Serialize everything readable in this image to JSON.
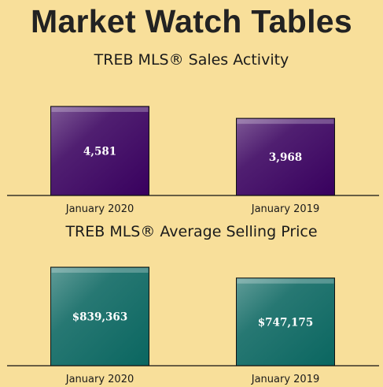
{
  "header": {
    "title": "Market Watch Tables"
  },
  "colors": {
    "background": "#f8df9a",
    "sales_bar": "#38005e",
    "price_bar": "#0a6660"
  },
  "chart_data": [
    {
      "type": "bar",
      "title": "TREB MLS® Sales Activity",
      "categories": [
        "January 2020",
        "January 2019"
      ],
      "values": [
        4581,
        3968
      ],
      "labels": [
        "4,581",
        "3,968"
      ],
      "color": "#38005e"
    },
    {
      "type": "bar",
      "title": "TREB MLS® Average Selling Price",
      "categories": [
        "January 2020",
        "January 2019"
      ],
      "values": [
        839363,
        747175
      ],
      "labels": [
        "$839,363",
        "$747,175"
      ],
      "color": "#0a6660"
    }
  ]
}
